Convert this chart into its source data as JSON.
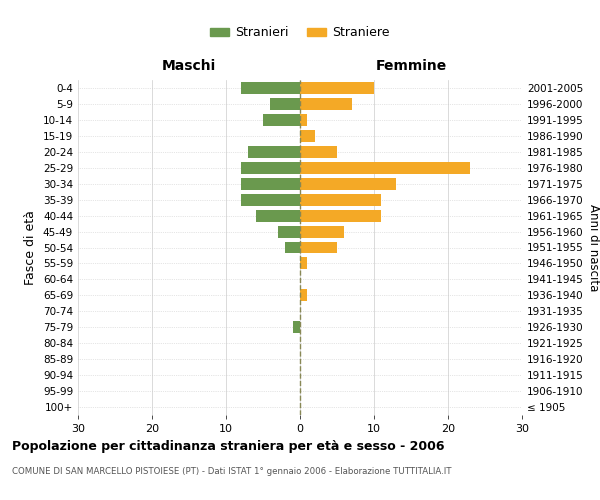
{
  "age_groups": [
    "100+",
    "95-99",
    "90-94",
    "85-89",
    "80-84",
    "75-79",
    "70-74",
    "65-69",
    "60-64",
    "55-59",
    "50-54",
    "45-49",
    "40-44",
    "35-39",
    "30-34",
    "25-29",
    "20-24",
    "15-19",
    "10-14",
    "5-9",
    "0-4"
  ],
  "birth_years": [
    "≤ 1905",
    "1906-1910",
    "1911-1915",
    "1916-1920",
    "1921-1925",
    "1926-1930",
    "1931-1935",
    "1936-1940",
    "1941-1945",
    "1946-1950",
    "1951-1955",
    "1956-1960",
    "1961-1965",
    "1966-1970",
    "1971-1975",
    "1976-1980",
    "1981-1985",
    "1986-1990",
    "1991-1995",
    "1996-2000",
    "2001-2005"
  ],
  "males": [
    0,
    0,
    0,
    0,
    0,
    1,
    0,
    0,
    0,
    0,
    2,
    3,
    6,
    8,
    8,
    8,
    7,
    0,
    5,
    4,
    8
  ],
  "females": [
    0,
    0,
    0,
    0,
    0,
    0,
    0,
    1,
    0,
    1,
    5,
    6,
    11,
    11,
    13,
    23,
    5,
    2,
    1,
    7,
    10
  ],
  "male_color": "#6a994e",
  "female_color": "#f4a926",
  "background_color": "#ffffff",
  "grid_color": "#cccccc",
  "center_line_color": "#888855",
  "xlim": 30,
  "title": "Popolazione per cittadinanza straniera per età e sesso - 2006",
  "subtitle": "COMUNE DI SAN MARCELLO PISTOIESE (PT) - Dati ISTAT 1° gennaio 2006 - Elaborazione TUTTITALIA.IT",
  "left_label": "Maschi",
  "right_label": "Femmine",
  "ylabel": "Fasce di età",
  "right_ylabel": "Anni di nascita",
  "legend_male": "Stranieri",
  "legend_female": "Straniere"
}
